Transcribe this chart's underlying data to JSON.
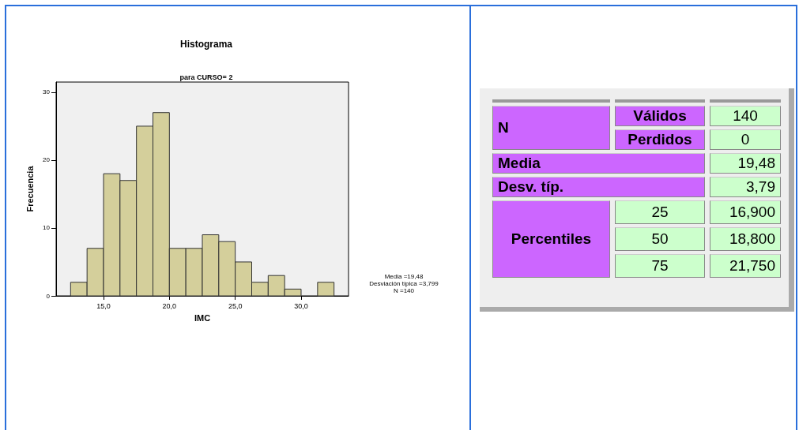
{
  "chart_data": [
    {
      "type": "histogram",
      "title": "Histograma",
      "subtitle": "para CURSO= 2",
      "xlabel": "IMC",
      "ylabel": "Frecuencia",
      "bins": [
        12.5,
        13.75,
        15,
        16.25,
        17.5,
        18.75,
        20,
        21.25,
        22.5,
        23.75,
        25,
        26.25,
        27.5,
        28.75,
        30,
        31.25,
        32.5
      ],
      "values": [
        2,
        7,
        18,
        17,
        25,
        27,
        7,
        7,
        9,
        8,
        5,
        2,
        3,
        1,
        0,
        2
      ],
      "color": "#d4cf9b",
      "xlim": [
        11.4,
        33.6
      ],
      "xticks": [
        {
          "value": 15,
          "label": "15,0"
        },
        {
          "value": 20,
          "label": "20,0"
        },
        {
          "value": 25,
          "label": "25,0"
        },
        {
          "value": 30,
          "label": "30,0"
        }
      ],
      "ylim": [
        0,
        31.5
      ],
      "yticks": [
        0,
        10,
        20,
        30
      ],
      "grid": false,
      "annotations": [
        "Media =19,48",
        "Desviación típica =3,799",
        "N =140"
      ]
    },
    {
      "type": "other",
      "annotations": [
        "N",
        "Válidos",
        "140",
        "Perdidos",
        "0",
        "Media",
        "19,48",
        "Desv. típ.",
        "3,79",
        "Percentiles",
        "25",
        "16,900",
        "50",
        "18,800",
        "75",
        "21,750"
      ]
    }
  ]
}
